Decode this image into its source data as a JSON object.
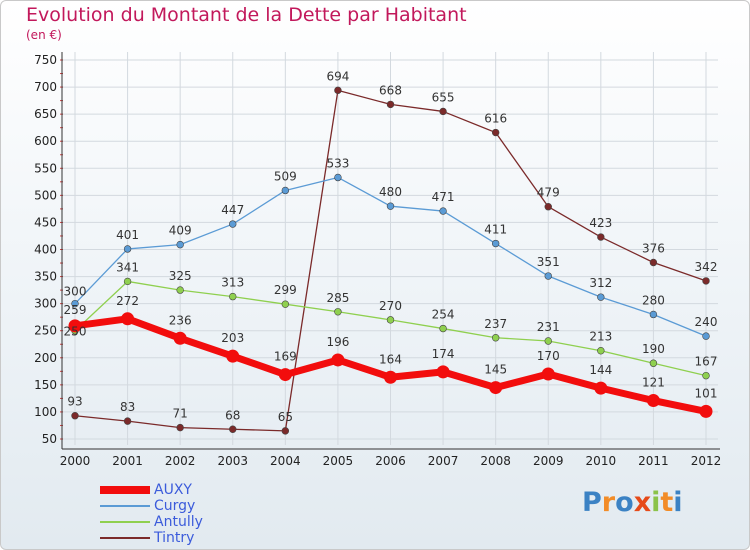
{
  "title": "Evolution du Montant de la Dette par Habitant",
  "subtitle": "(en €)",
  "logo": {
    "letters": [
      "P",
      "r",
      "o",
      "x",
      "i",
      "t",
      "i"
    ],
    "colors": [
      "#3b82c4",
      "#f28c28",
      "#3b82c4",
      "#e64a19",
      "#8bc34a",
      "#f28c28",
      "#3b82c4"
    ]
  },
  "chart_data": {
    "type": "line",
    "x": [
      "2000",
      "2001",
      "2002",
      "2003",
      "2004",
      "2005",
      "2006",
      "2007",
      "2008",
      "2009",
      "2010",
      "2011",
      "2012"
    ],
    "ylim": [
      50,
      750
    ],
    "yticks": [
      50,
      100,
      150,
      200,
      250,
      300,
      350,
      400,
      450,
      500,
      550,
      600,
      650,
      700,
      750
    ],
    "grid": true,
    "legend_position": "bottom-left",
    "series": [
      {
        "name": "AUXY",
        "color": "#f20d0d",
        "values": [
          259,
          272,
          236,
          203,
          169,
          196,
          164,
          174,
          145,
          170,
          144,
          121,
          101
        ]
      },
      {
        "name": "Curgy",
        "color": "#5b9bd5",
        "values": [
          300,
          401,
          409,
          447,
          509,
          533,
          480,
          471,
          411,
          351,
          312,
          280,
          240
        ]
      },
      {
        "name": "Antully",
        "color": "#8fd04f",
        "values": [
          250,
          341,
          325,
          313,
          299,
          285,
          270,
          254,
          237,
          231,
          213,
          190,
          167
        ]
      },
      {
        "name": "Tintry",
        "color": "#7b2a2a",
        "values": [
          93,
          83,
          71,
          68,
          65,
          694,
          668,
          655,
          616,
          479,
          423,
          376,
          342
        ]
      }
    ]
  }
}
